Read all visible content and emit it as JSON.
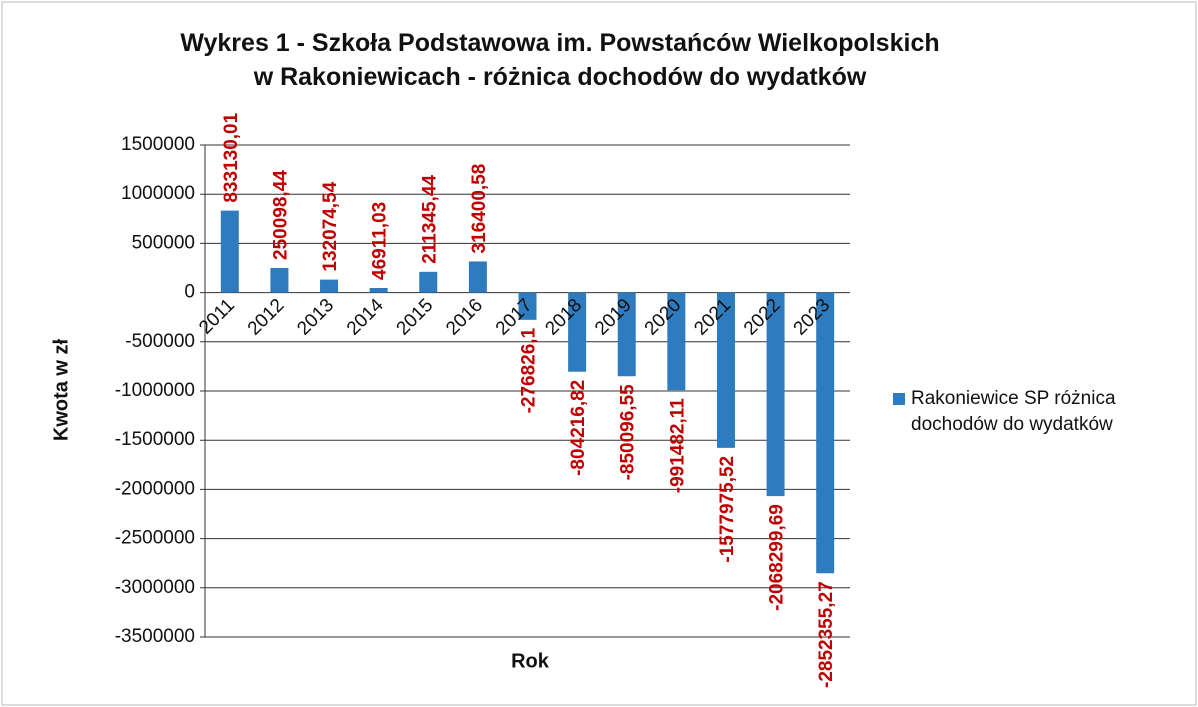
{
  "chart_data": {
    "type": "bar",
    "title": "Wykres 1 - Szkoła Podstawowa im. Powstańców Wielkopolskich w Rakoniewicach - różnica dochodów do wydatków",
    "x_label": "Rok",
    "y_label": "Kwota w zł",
    "categories": [
      "2011",
      "2012",
      "2013",
      "2014",
      "2015",
      "2016",
      "2017",
      "2018",
      "2019",
      "2020",
      "2021",
      "2022",
      "2023"
    ],
    "series": [
      {
        "name": "Rakoniewice SP różnica dochodów do wydatków",
        "color": "#2f7bbf",
        "values": [
          833130.01,
          250098.44,
          132074.54,
          46911.03,
          211345.44,
          316400.58,
          -276826.1,
          -804216.82,
          -850096.55,
          -991482.11,
          -1577975.52,
          -2068299.69,
          -2852355.27
        ],
        "value_labels": [
          "833130,01",
          "250098,44",
          "132074,54",
          "46911,03",
          "211345,44",
          "316400,58",
          "-276826,1",
          "-804216,82",
          "-850096,55",
          "-991482,11",
          "-1577975,52",
          "-2068299,69",
          "-2852355,27"
        ],
        "label_color": "#c00000"
      }
    ],
    "ylim": [
      -3500000,
      1500000
    ],
    "yticks": [
      -3500000,
      -3000000,
      -2500000,
      -2000000,
      -1500000,
      -1000000,
      -500000,
      0,
      500000,
      1000000,
      1500000
    ],
    "grid": true,
    "legend": "right"
  }
}
